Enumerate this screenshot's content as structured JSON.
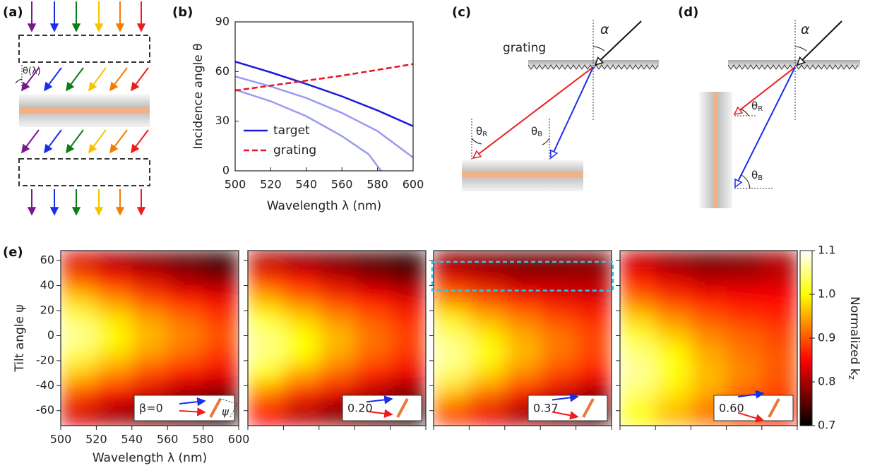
{
  "panel_labels": [
    "(a)",
    "(b)",
    "(c)",
    "(d)",
    "(e)"
  ],
  "diagram_a": {
    "angle_label": "θ(λ)"
  },
  "diagram_c": {
    "surface_label": "grating",
    "alpha": "α",
    "theta": "θ",
    "red_sub": "R",
    "blue_sub": "B"
  },
  "diagram_d": {
    "alpha": "α",
    "theta": "θ",
    "red_sub": "R",
    "blue_sub": "B"
  },
  "colorbar": {
    "label": "Normalized k",
    "label_sub": "z",
    "colormap": "hot",
    "zlim": [
      0.7,
      1.1
    ],
    "ticks": [
      0.7,
      0.8,
      0.9,
      {
        "value": 1,
        "label": "1.0"
      },
      1.1
    ]
  },
  "chart_data": [
    {
      "type": "line",
      "x_label": "Wavelength λ (nm)",
      "y_label": "Incidence angle θ",
      "x": [
        500,
        520,
        540,
        560,
        580,
        600
      ],
      "xlim": [
        500,
        600
      ],
      "ylim": [
        0,
        90
      ],
      "xticks": [
        500,
        520,
        540,
        560,
        580,
        600
      ],
      "yticks": [
        0,
        30,
        60,
        90
      ],
      "legend": "lower left",
      "series": [
        {
          "name": "target",
          "color": "#1a1adb",
          "dash": false,
          "values": [
            66,
            59.5,
            52.5,
            45,
            36.5,
            27
          ]
        },
        {
          "color": "#9a9af5",
          "dash": false,
          "values": [
            57,
            51,
            44,
            35,
            24,
            8
          ]
        },
        {
          "color": "#9a9af5",
          "dash": false,
          "x": [
            500,
            520,
            540,
            560,
            575,
            582
          ],
          "values": [
            49,
            42,
            33,
            21,
            10,
            0
          ]
        },
        {
          "name": "grating",
          "color": "#e8141a",
          "dash": true,
          "values": [
            48.5,
            51.5,
            54.5,
            57.5,
            61,
            64.5
          ]
        }
      ]
    },
    {
      "type": "heatmap",
      "x_label": "Wavelength λ (nm)",
      "y_label": "Tilt angle ψ",
      "tick_labels": true,
      "inset_label": "β=0",
      "inset_angle_label": "ψ",
      "x": [
        510,
        530,
        550,
        570,
        590
      ],
      "y": [
        60,
        45,
        30,
        15,
        0,
        -15,
        -30,
        -45,
        -60
      ],
      "xlim": [
        500,
        600
      ],
      "ylim": [
        -72,
        68
      ],
      "xticks": [
        500,
        520,
        540,
        560,
        580,
        600
      ],
      "yticks": [
        -60,
        -40,
        -20,
        0,
        20,
        40,
        60
      ],
      "z": [
        [
          0.83,
          0.8,
          0.77,
          0.75,
          0.72
        ],
        [
          0.9,
          0.86,
          0.83,
          0.8,
          0.78
        ],
        [
          0.97,
          0.93,
          0.89,
          0.86,
          0.84
        ],
        [
          1.03,
          0.98,
          0.94,
          0.91,
          0.88
        ],
        [
          1.06,
          1.0,
          0.96,
          0.93,
          0.9
        ],
        [
          1.03,
          0.98,
          0.94,
          0.91,
          0.88
        ],
        [
          0.97,
          0.93,
          0.89,
          0.86,
          0.84
        ],
        [
          0.9,
          0.86,
          0.83,
          0.8,
          0.78
        ],
        [
          0.83,
          0.8,
          0.77,
          0.75,
          0.72
        ]
      ]
    },
    {
      "type": "heatmap",
      "tick_labels": false,
      "inset_label": "0.20",
      "x": [
        510,
        530,
        550,
        570,
        590
      ],
      "y": [
        60,
        45,
        30,
        15,
        0,
        -15,
        -30,
        -45,
        -60
      ],
      "xlim": [
        500,
        600
      ],
      "ylim": [
        -72,
        68
      ],
      "xticks": [
        500,
        520,
        540,
        560,
        580,
        600
      ],
      "yticks": [
        -60,
        -40,
        -20,
        0,
        20,
        40,
        60
      ],
      "z": [
        [
          0.81,
          0.78,
          0.76,
          0.74,
          0.72
        ],
        [
          0.88,
          0.85,
          0.82,
          0.79,
          0.77
        ],
        [
          0.95,
          0.91,
          0.88,
          0.85,
          0.83
        ],
        [
          1.01,
          0.97,
          0.93,
          0.9,
          0.87
        ],
        [
          1.05,
          1.0,
          0.96,
          0.92,
          0.89
        ],
        [
          1.05,
          1.0,
          0.95,
          0.91,
          0.88
        ],
        [
          1.0,
          0.95,
          0.91,
          0.87,
          0.84
        ],
        [
          0.93,
          0.88,
          0.84,
          0.81,
          0.78
        ],
        [
          0.85,
          0.81,
          0.78,
          0.75,
          0.72
        ]
      ]
    },
    {
      "type": "heatmap",
      "tick_labels": false,
      "inset_label": "0.37",
      "highlight_y": [
        36,
        59
      ],
      "x": [
        510,
        530,
        550,
        570,
        590
      ],
      "y": [
        60,
        45,
        30,
        15,
        0,
        -15,
        -30,
        -45,
        -60
      ],
      "xlim": [
        500,
        600
      ],
      "ylim": [
        -72,
        68
      ],
      "xticks": [
        500,
        520,
        540,
        560,
        580,
        600
      ],
      "yticks": [
        -60,
        -40,
        -20,
        0,
        20,
        40,
        60
      ],
      "z": [
        [
          0.78,
          0.77,
          0.76,
          0.76,
          0.77
        ],
        [
          0.84,
          0.82,
          0.8,
          0.8,
          0.8
        ],
        [
          0.92,
          0.89,
          0.86,
          0.84,
          0.83
        ],
        [
          0.99,
          0.95,
          0.92,
          0.89,
          0.87
        ],
        [
          1.04,
          0.99,
          0.95,
          0.92,
          0.89
        ],
        [
          1.06,
          1.01,
          0.96,
          0.92,
          0.89
        ],
        [
          1.04,
          0.98,
          0.93,
          0.89,
          0.86
        ],
        [
          0.97,
          0.92,
          0.87,
          0.83,
          0.8
        ],
        [
          0.89,
          0.84,
          0.8,
          0.77,
          0.74
        ]
      ]
    },
    {
      "type": "heatmap",
      "tick_labels": false,
      "inset_label": "0.60",
      "x": [
        510,
        530,
        550,
        570,
        590
      ],
      "y": [
        60,
        45,
        30,
        15,
        0,
        -15,
        -30,
        -45,
        -60
      ],
      "xlim": [
        500,
        600
      ],
      "ylim": [
        -72,
        68
      ],
      "xticks": [
        500,
        520,
        540,
        560,
        580,
        600
      ],
      "yticks": [
        -60,
        -40,
        -20,
        0,
        20,
        40,
        60
      ],
      "z": [
        [
          0.82,
          0.78,
          0.76,
          0.77,
          0.8
        ],
        [
          0.86,
          0.83,
          0.81,
          0.81,
          0.82
        ],
        [
          0.91,
          0.88,
          0.86,
          0.85,
          0.85
        ],
        [
          0.97,
          0.93,
          0.9,
          0.88,
          0.87
        ],
        [
          1.02,
          0.97,
          0.93,
          0.91,
          0.89
        ],
        [
          1.05,
          1.0,
          0.95,
          0.92,
          0.9
        ],
        [
          1.06,
          1.01,
          0.96,
          0.93,
          0.9
        ],
        [
          1.04,
          0.99,
          0.95,
          0.91,
          0.89
        ],
        [
          1.0,
          0.96,
          0.92,
          0.89,
          0.87
        ]
      ]
    }
  ]
}
